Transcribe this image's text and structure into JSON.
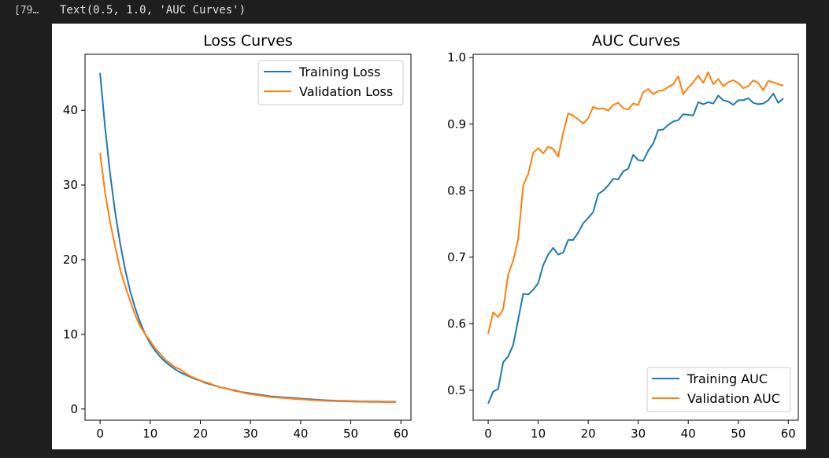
{
  "cell": {
    "prompt": "[79…",
    "output_text": "Text(0.5, 1.0, 'AUC Curves')"
  },
  "colors": {
    "training": "#1f77b4",
    "validation": "#ff7f0e"
  },
  "chart_data": [
    {
      "type": "line",
      "title": "Loss Curves",
      "xlabel": "",
      "ylabel": "",
      "xlim": [
        -3,
        62
      ],
      "ylim": [
        -1.5,
        47.5
      ],
      "xticks": [
        0,
        10,
        20,
        30,
        40,
        50,
        60
      ],
      "yticks": [
        0,
        10,
        20,
        30,
        40
      ],
      "grid": false,
      "legend_position": "upper right",
      "series": [
        {
          "name": "Training Loss",
          "color": "#1f77b4",
          "x": [
            0,
            1,
            2,
            3,
            4,
            5,
            6,
            7,
            8,
            9,
            10,
            11,
            12,
            13,
            14,
            15,
            16,
            17,
            18,
            19,
            20,
            21,
            22,
            23,
            24,
            25,
            26,
            27,
            28,
            29,
            30,
            31,
            32,
            33,
            34,
            35,
            36,
            37,
            38,
            39,
            40,
            41,
            42,
            43,
            44,
            45,
            46,
            47,
            48,
            49,
            50,
            51,
            52,
            53,
            54,
            55,
            56,
            57,
            58,
            59
          ],
          "values": [
            45.0,
            37.7,
            31.5,
            26.4,
            22.2,
            18.7,
            15.8,
            13.5,
            11.6,
            10.0,
            8.8,
            7.8,
            7.0,
            6.3,
            5.8,
            5.3,
            4.9,
            4.6,
            4.3,
            4.0,
            3.8,
            3.5,
            3.3,
            3.1,
            2.9,
            2.8,
            2.6,
            2.5,
            2.3,
            2.2,
            2.1,
            2.0,
            1.9,
            1.8,
            1.7,
            1.65,
            1.6,
            1.55,
            1.5,
            1.45,
            1.4,
            1.35,
            1.3,
            1.26,
            1.22,
            1.18,
            1.15,
            1.12,
            1.1,
            1.08,
            1.06,
            1.04,
            1.02,
            1.01,
            1.0,
            1.0,
            0.99,
            0.98,
            0.98,
            0.97
          ]
        },
        {
          "name": "Validation Loss",
          "color": "#ff7f0e",
          "x": [
            0,
            1,
            2,
            3,
            4,
            5,
            6,
            7,
            8,
            9,
            10,
            11,
            12,
            13,
            14,
            15,
            16,
            17,
            18,
            19,
            20,
            21,
            22,
            23,
            24,
            25,
            26,
            27,
            28,
            29,
            30,
            31,
            32,
            33,
            34,
            35,
            36,
            37,
            38,
            39,
            40,
            41,
            42,
            43,
            44,
            45,
            46,
            47,
            48,
            49,
            50,
            51,
            52,
            53,
            54,
            55,
            56,
            57,
            58,
            59
          ],
          "values": [
            34.3,
            29.0,
            25.0,
            21.8,
            18.7,
            16.5,
            14.5,
            12.6,
            11.1,
            10.0,
            9.1,
            8.1,
            7.4,
            6.6,
            6.1,
            5.6,
            5.3,
            4.8,
            4.4,
            4.1,
            3.8,
            3.6,
            3.4,
            3.1,
            2.9,
            2.8,
            2.6,
            2.4,
            2.3,
            2.1,
            2.0,
            1.9,
            1.8,
            1.7,
            1.6,
            1.55,
            1.5,
            1.45,
            1.4,
            1.35,
            1.3,
            1.25,
            1.2,
            1.17,
            1.14,
            1.1,
            1.08,
            1.05,
            1.03,
            1.01,
            1.0,
            0.98,
            0.97,
            0.96,
            0.95,
            0.95,
            0.94,
            0.93,
            0.92,
            0.91
          ]
        }
      ]
    },
    {
      "type": "line",
      "title": "AUC Curves",
      "xlabel": "",
      "ylabel": "",
      "xlim": [
        -3,
        62
      ],
      "ylim": [
        0.455,
        1.005
      ],
      "xticks": [
        0,
        10,
        20,
        30,
        40,
        50,
        60
      ],
      "yticks": [
        0.5,
        0.6,
        0.7,
        0.8,
        0.9,
        1.0
      ],
      "ytick_labels": [
        "0.5",
        "0.6",
        "0.7",
        "0.8",
        "0.9",
        "1.0"
      ],
      "grid": false,
      "legend_position": "lower right",
      "series": [
        {
          "name": "Training AUC",
          "color": "#1f77b4",
          "x": [
            0,
            1,
            2,
            3,
            4,
            5,
            6,
            7,
            8,
            9,
            10,
            11,
            12,
            13,
            14,
            15,
            16,
            17,
            18,
            19,
            20,
            21,
            22,
            23,
            24,
            25,
            26,
            27,
            28,
            29,
            30,
            31,
            32,
            33,
            34,
            35,
            36,
            37,
            38,
            39,
            40,
            41,
            42,
            43,
            44,
            45,
            46,
            47,
            48,
            49,
            50,
            51,
            52,
            53,
            54,
            55,
            56,
            57,
            58,
            59
          ],
          "values": [
            0.48,
            0.498,
            0.502,
            0.542,
            0.551,
            0.568,
            0.606,
            0.645,
            0.644,
            0.651,
            0.661,
            0.688,
            0.704,
            0.714,
            0.704,
            0.707,
            0.726,
            0.726,
            0.737,
            0.751,
            0.759,
            0.768,
            0.795,
            0.8,
            0.808,
            0.818,
            0.817,
            0.829,
            0.833,
            0.854,
            0.846,
            0.845,
            0.86,
            0.871,
            0.891,
            0.892,
            0.899,
            0.904,
            0.906,
            0.915,
            0.914,
            0.913,
            0.933,
            0.93,
            0.933,
            0.931,
            0.943,
            0.936,
            0.934,
            0.929,
            0.936,
            0.936,
            0.939,
            0.932,
            0.93,
            0.931,
            0.936,
            0.946,
            0.932,
            0.939
          ]
        },
        {
          "name": "Validation AUC",
          "color": "#ff7f0e",
          "x": [
            0,
            1,
            2,
            3,
            4,
            5,
            6,
            7,
            8,
            9,
            10,
            11,
            12,
            13,
            14,
            15,
            16,
            17,
            18,
            19,
            20,
            21,
            22,
            23,
            24,
            25,
            26,
            27,
            28,
            29,
            30,
            31,
            32,
            33,
            34,
            35,
            36,
            37,
            38,
            39,
            40,
            41,
            42,
            43,
            44,
            45,
            46,
            47,
            48,
            49,
            50,
            51,
            52,
            53,
            54,
            55,
            56,
            57,
            58,
            59
          ],
          "values": [
            0.585,
            0.617,
            0.61,
            0.622,
            0.674,
            0.695,
            0.727,
            0.808,
            0.825,
            0.857,
            0.864,
            0.856,
            0.866,
            0.863,
            0.851,
            0.887,
            0.916,
            0.913,
            0.907,
            0.901,
            0.909,
            0.926,
            0.923,
            0.924,
            0.92,
            0.929,
            0.932,
            0.924,
            0.922,
            0.931,
            0.929,
            0.948,
            0.953,
            0.945,
            0.95,
            0.951,
            0.956,
            0.96,
            0.972,
            0.945,
            0.955,
            0.963,
            0.973,
            0.962,
            0.978,
            0.96,
            0.968,
            0.957,
            0.963,
            0.966,
            0.962,
            0.954,
            0.957,
            0.966,
            0.962,
            0.951,
            0.965,
            0.963,
            0.96,
            0.958
          ]
        }
      ]
    }
  ]
}
